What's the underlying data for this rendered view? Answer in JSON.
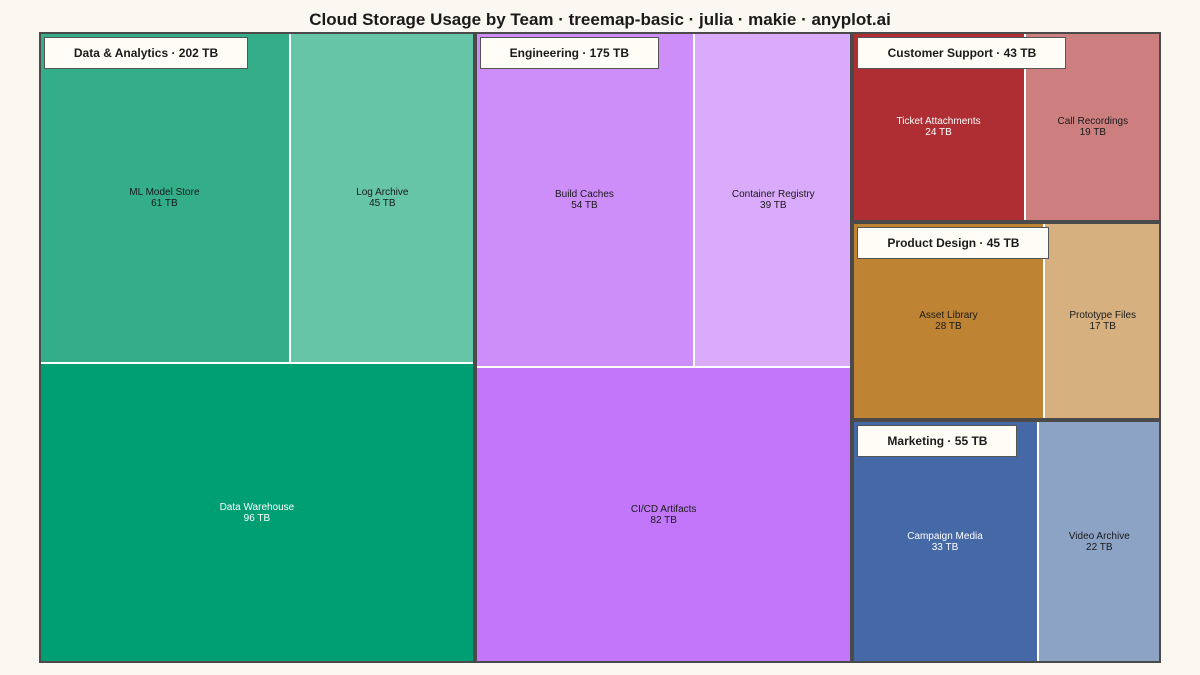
{
  "title": "Cloud Storage Usage by Team · treemap-basic · julia · makie · anyplot.ai",
  "chart_data": {
    "type": "treemap",
    "unit": "TB",
    "groups": [
      {
        "name": "Data & Analytics",
        "label": "Data & Analytics · 202 TB",
        "total": 202,
        "children": [
          {
            "name": "ML Model Store",
            "value": 61,
            "value_label": "61 TB",
            "color": "#33AE89",
            "text_color": "#1a1a1a"
          },
          {
            "name": "Log Archive",
            "value": 45,
            "value_label": "45 TB",
            "color": "#66C5A6",
            "text_color": "#1a1a1a"
          },
          {
            "name": "Data Warehouse",
            "value": 96,
            "value_label": "96 TB",
            "color": "#009E73",
            "text_color": "#ffffff"
          }
        ]
      },
      {
        "name": "Engineering",
        "label": "Engineering · 175 TB",
        "total": 175,
        "children": [
          {
            "name": "Build Caches",
            "value": 54,
            "value_label": "54 TB",
            "color": "#CE8EF9",
            "text_color": "#1a1a1a"
          },
          {
            "name": "Container Registry",
            "value": 39,
            "value_label": "39 TB",
            "color": "#DAAAFB",
            "text_color": "#1a1a1a"
          },
          {
            "name": "CI/CD Artifacts",
            "value": 82,
            "value_label": "82 TB",
            "color": "#C277FA",
            "text_color": "#1a1a1a"
          }
        ]
      },
      {
        "name": "Customer Support",
        "label": "Customer Support · 43 TB",
        "total": 43,
        "children": [
          {
            "name": "Ticket Attachments",
            "value": 24,
            "value_label": "24 TB",
            "color": "#AE2E33",
            "text_color": "#ffffff"
          },
          {
            "name": "Call Recordings",
            "value": 19,
            "value_label": "19 TB",
            "color": "#CD7F7F",
            "text_color": "#1a1a1a"
          }
        ]
      },
      {
        "name": "Product Design",
        "label": "Product Design · 45 TB",
        "total": 45,
        "children": [
          {
            "name": "Asset Library",
            "value": 28,
            "value_label": "28 TB",
            "color": "#BE8433",
            "text_color": "#1a1a1a"
          },
          {
            "name": "Prototype Files",
            "value": 17,
            "value_label": "17 TB",
            "color": "#D6B07F",
            "text_color": "#1a1a1a"
          }
        ]
      },
      {
        "name": "Marketing",
        "label": "Marketing · 55 TB",
        "total": 55,
        "children": [
          {
            "name": "Campaign Media",
            "value": 33,
            "value_label": "33 TB",
            "color": "#4569A6",
            "text_color": "#ffffff"
          },
          {
            "name": "Video Archive",
            "value": 22,
            "value_label": "22 TB",
            "color": "#8DA3C5",
            "text_color": "#1a1a1a"
          }
        ]
      }
    ]
  }
}
